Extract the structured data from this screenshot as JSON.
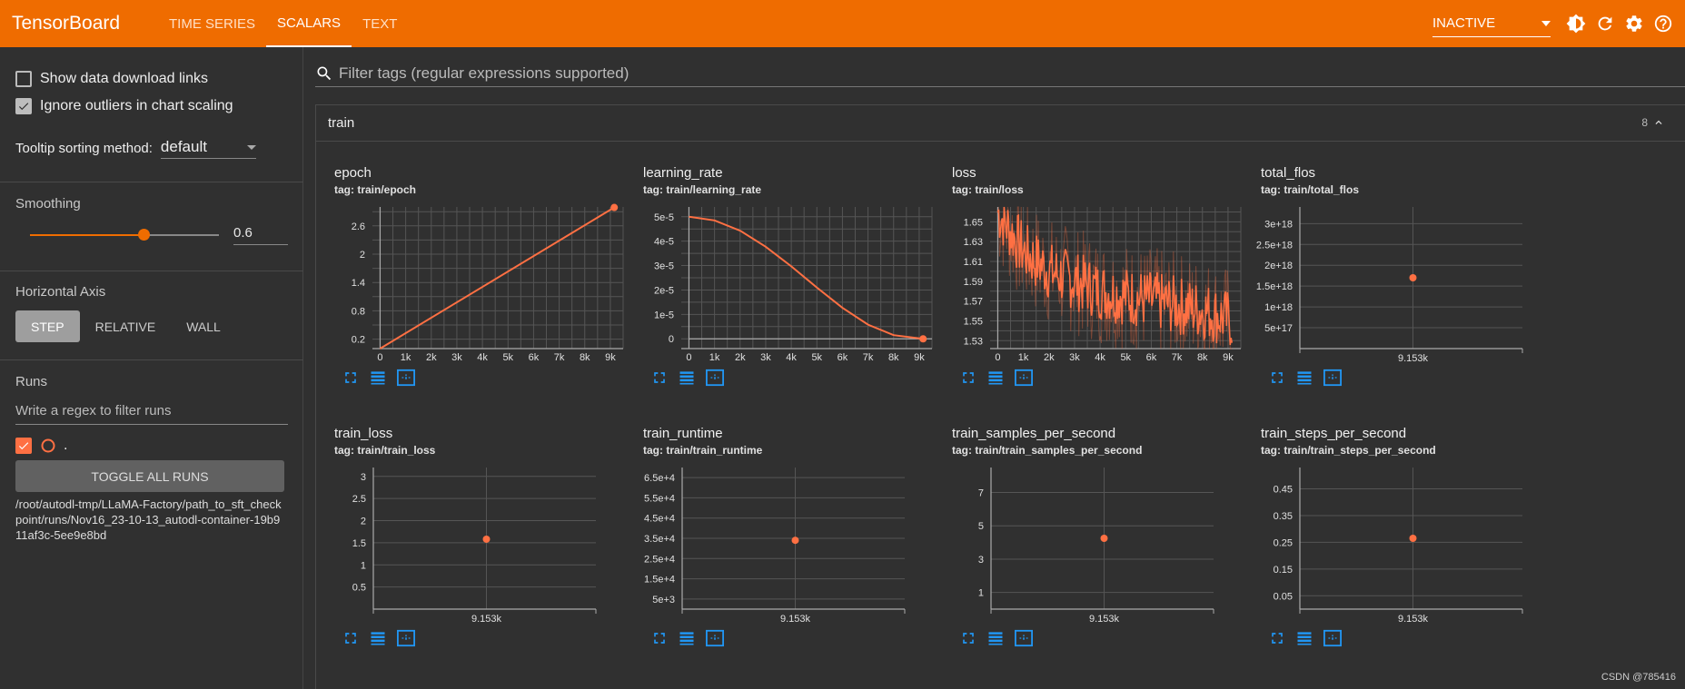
{
  "app": {
    "brand": "TensorBoard",
    "tabs": [
      {
        "label": "TIME SERIES",
        "active": false
      },
      {
        "label": "SCALARS",
        "active": true
      },
      {
        "label": "TEXT",
        "active": false
      }
    ],
    "status_select": "INACTIVE",
    "accent_color": "#ef6c00",
    "toolbar_icons": [
      "theme-icon",
      "reload-icon",
      "settings-icon",
      "help-icon"
    ]
  },
  "sidebar": {
    "show_download_links": {
      "label": "Show data download links",
      "checked": false
    },
    "ignore_outliers": {
      "label": "Ignore outliers in chart scaling",
      "checked": true
    },
    "tooltip_sorting": {
      "label": "Tooltip sorting method:",
      "value": "default"
    },
    "smoothing": {
      "label": "Smoothing",
      "value": 0.6,
      "display": "0.6"
    },
    "horizontal_axis": {
      "label": "Horizontal Axis",
      "options": [
        "STEP",
        "RELATIVE",
        "WALL"
      ],
      "selected": "STEP"
    },
    "runs": {
      "label": "Runs",
      "filter_placeholder": "Write a regex to filter runs",
      "run_name": ".",
      "toggle_all_label": "TOGGLE ALL RUNS",
      "path": "/root/autodl-tmp/LLaMA-Factory/path_to_sft_checkpoint/runs/Nov16_23-10-13_autodl-container-19b911af3c-5ee9e8bd"
    }
  },
  "main": {
    "filter_placeholder": "Filter tags (regular expressions supported)",
    "group": {
      "name": "train",
      "count": "8"
    }
  },
  "cards": [
    {
      "title": "epoch",
      "tag": "tag: train/epoch"
    },
    {
      "title": "learning_rate",
      "tag": "tag: train/learning_rate"
    },
    {
      "title": "loss",
      "tag": "tag: train/loss"
    },
    {
      "title": "total_flos",
      "tag": "tag: train/total_flos"
    },
    {
      "title": "train_loss",
      "tag": "tag: train/train_loss"
    },
    {
      "title": "train_runtime",
      "tag": "tag: train/train_runtime"
    },
    {
      "title": "train_samples_per_second",
      "tag": "tag: train/train_samples_per_second"
    },
    {
      "title": "train_steps_per_second",
      "tag": "tag: train/train_steps_per_second"
    }
  ],
  "chart_data": [
    {
      "type": "line",
      "title": "epoch",
      "x": [
        0,
        9153
      ],
      "y": [
        0.0,
        2.99
      ],
      "xticks": [
        "0",
        "1k",
        "2k",
        "3k",
        "4k",
        "5k",
        "6k",
        "7k",
        "8k",
        "9k"
      ],
      "yticks": [
        "0.2",
        "0.8",
        "1.4",
        "2",
        "2.6"
      ],
      "xlim": [
        -300,
        9500
      ],
      "ylim": [
        0,
        3.0
      ]
    },
    {
      "type": "line",
      "title": "learning_rate",
      "x": [
        0,
        1000,
        2000,
        3000,
        4000,
        5000,
        6000,
        7000,
        8000,
        9153
      ],
      "y": [
        5e-05,
        4.85e-05,
        4.43e-05,
        3.77e-05,
        2.97e-05,
        2.1e-05,
        1.27e-05,
        5.8e-06,
        1.5e-06,
        0
      ],
      "xticks": [
        "0",
        "1k",
        "2k",
        "3k",
        "4k",
        "5k",
        "6k",
        "7k",
        "8k",
        "9k"
      ],
      "yticks": [
        "0",
        "1e-5",
        "2e-5",
        "3e-5",
        "4e-5",
        "5e-5"
      ],
      "xlim": [
        -300,
        9500
      ],
      "ylim": [
        -4e-06,
        5.4e-05
      ]
    },
    {
      "type": "line",
      "title": "loss",
      "x_range": [
        0,
        9153
      ],
      "y_range": [
        1.52,
        1.66
      ],
      "trend": [
        1.66,
        1.62,
        1.6,
        1.59,
        1.58,
        1.575,
        1.57,
        1.565,
        1.56,
        1.55
      ],
      "xticks": [
        "0",
        "1k",
        "2k",
        "3k",
        "4k",
        "5k",
        "6k",
        "7k",
        "8k",
        "9k"
      ],
      "yticks": [
        "1.53",
        "1.55",
        "1.57",
        "1.59",
        "1.61",
        "1.63",
        "1.65"
      ],
      "xlim": [
        -300,
        9500
      ],
      "ylim": [
        1.522,
        1.665
      ]
    },
    {
      "type": "scatter",
      "title": "total_flos",
      "x": [
        9153
      ],
      "y": [
        1.7e+18
      ],
      "xticks": [
        "9.153k"
      ],
      "yticks": [
        "5e+17",
        "1e+18",
        "1.5e+18",
        "2e+18",
        "2.5e+18",
        "3e+18"
      ],
      "ylim": [
        0,
        3.4e+18
      ]
    },
    {
      "type": "scatter",
      "title": "train_loss",
      "x": [
        9153
      ],
      "y": [
        1.58
      ],
      "xticks": [
        "9.153k"
      ],
      "yticks": [
        "0.5",
        "1",
        "1.5",
        "2",
        "2.5",
        "3"
      ],
      "ylim": [
        0,
        3.2
      ]
    },
    {
      "type": "scatter",
      "title": "train_runtime",
      "x": [
        9153
      ],
      "y": [
        34000
      ],
      "xticks": [
        "9.153k"
      ],
      "yticks": [
        "5e+3",
        "1.5e+4",
        "2.5e+4",
        "3.5e+4",
        "4.5e+4",
        "5.5e+4",
        "6.5e+4"
      ],
      "ylim": [
        0,
        70000
      ]
    },
    {
      "type": "scatter",
      "title": "train_samples_per_second",
      "x": [
        9153
      ],
      "y": [
        4.25
      ],
      "xticks": [
        "9.153k"
      ],
      "yticks": [
        "1",
        "3",
        "5",
        "7"
      ],
      "ylim": [
        0,
        8.5
      ]
    },
    {
      "type": "scatter",
      "title": "train_steps_per_second",
      "x": [
        9153
      ],
      "y": [
        0.265
      ],
      "xticks": [
        "9.153k"
      ],
      "yticks": [
        "0.05",
        "0.15",
        "0.25",
        "0.35",
        "0.45"
      ],
      "ylim": [
        0,
        0.53
      ]
    }
  ],
  "watermark": "CSDN @785416"
}
